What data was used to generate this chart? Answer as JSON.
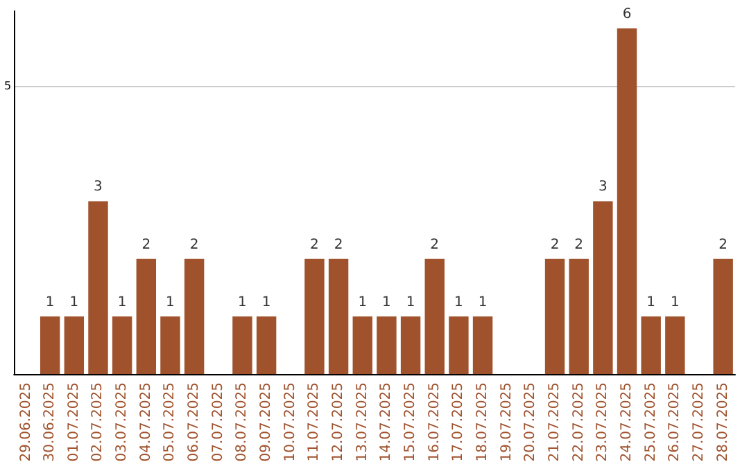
{
  "chart_data": {
    "type": "bar",
    "categories": [
      "29.06.2025",
      "30.06.2025",
      "01.07.2025",
      "02.07.2025",
      "03.07.2025",
      "04.07.2025",
      "05.07.2025",
      "06.07.2025",
      "07.07.2025",
      "08.07.2025",
      "09.07.2025",
      "10.07.2025",
      "11.07.2025",
      "12.07.2025",
      "13.07.2025",
      "14.07.2025",
      "15.07.2025",
      "16.07.2025",
      "17.07.2025",
      "18.07.2025",
      "19.07.2025",
      "20.07.2025",
      "21.07.2025",
      "22.07.2025",
      "23.07.2025",
      "24.07.2025",
      "25.07.2025",
      "26.07.2025",
      "27.07.2025",
      "28.07.2025"
    ],
    "values": [
      0,
      1,
      1,
      3,
      1,
      2,
      1,
      2,
      0,
      1,
      1,
      0,
      2,
      2,
      1,
      1,
      1,
      2,
      1,
      1,
      0,
      0,
      2,
      2,
      3,
      6,
      1,
      1,
      0,
      2
    ],
    "value_labels": [
      null,
      "1",
      "1",
      "3",
      "1",
      "2",
      "1",
      "2",
      null,
      "1",
      "1",
      null,
      "2",
      "2",
      "1",
      "1",
      "1",
      "2",
      "1",
      "1",
      null,
      null,
      "2",
      "2",
      "3",
      "6",
      "1",
      "1",
      null,
      "2"
    ],
    "color": "#a0522d",
    "ylim": [
      0,
      6.3
    ],
    "yticks": [
      {
        "value": 0,
        "label": null
      },
      5
    ],
    "grid": "y"
  }
}
